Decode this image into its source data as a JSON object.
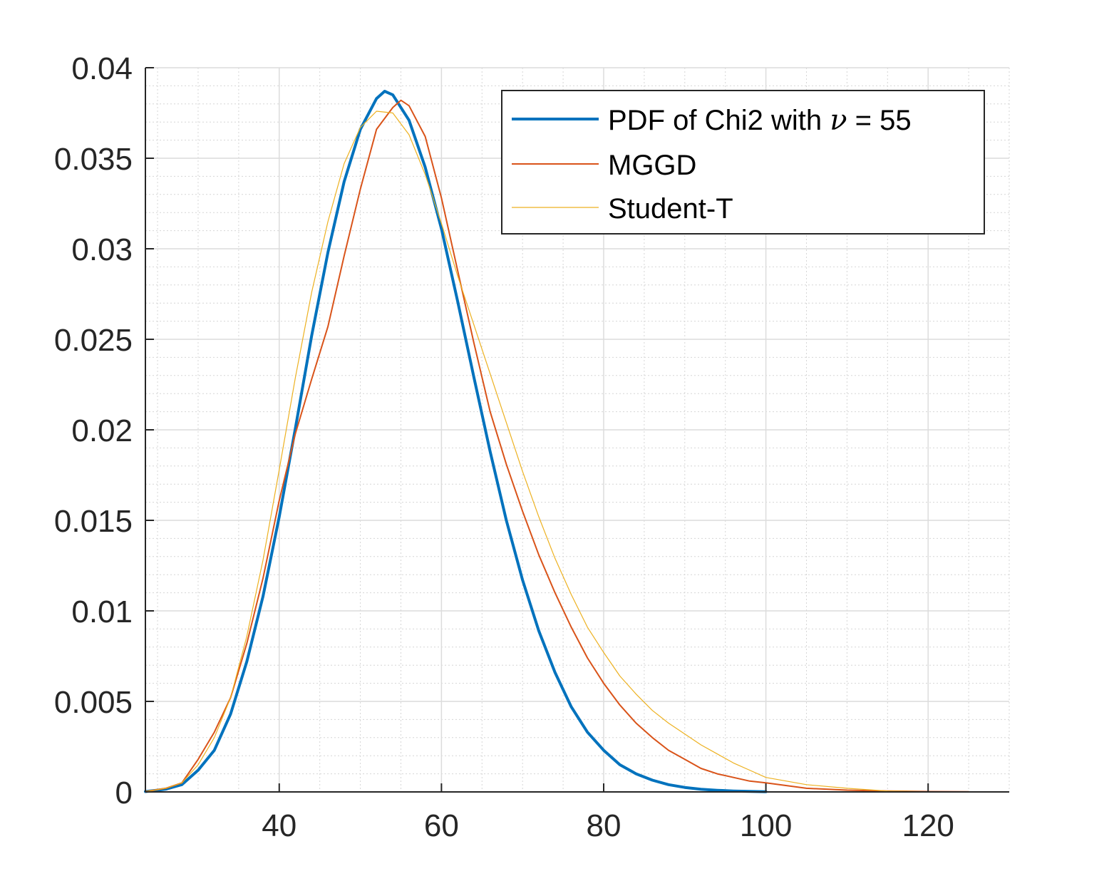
{
  "chart_data": {
    "type": "line",
    "title": "",
    "xlabel": "",
    "ylabel": "",
    "xlim": [
      23.5,
      130
    ],
    "ylim": [
      0,
      0.04
    ],
    "grid": true,
    "minor_grid": true,
    "legend_position": "top-right",
    "x_ticks": [
      40,
      60,
      80,
      100,
      120
    ],
    "x_tick_labels": [
      "40",
      "60",
      "80",
      "100",
      "120"
    ],
    "y_ticks": [
      0,
      0.005,
      0.01,
      0.015,
      0.02,
      0.025,
      0.03,
      0.035,
      0.04
    ],
    "y_tick_labels": [
      "0",
      "0.005",
      "0.01",
      "0.015",
      "0.02",
      "0.025",
      "0.03",
      "0.035",
      "0.04"
    ],
    "legend": {
      "chi2_prefix": "PDF of Chi2 with ",
      "nu_symbol": "ν",
      "chi2_suffix": " = 55"
    },
    "series": [
      {
        "name": "PDF of Chi2 with ν = 55",
        "color": "#0072BD",
        "style": "thick",
        "x": [
          23.5,
          26,
          28,
          30,
          32,
          34,
          36,
          38,
          40,
          42,
          44,
          46,
          48,
          50,
          52,
          53,
          54,
          56,
          58,
          60,
          62,
          64,
          66,
          68,
          70,
          72,
          74,
          76,
          78,
          80,
          82,
          84,
          86,
          88,
          90,
          92,
          94,
          96,
          98,
          100
        ],
        "y": [
          2e-05,
          0.00015,
          0.0004,
          0.0012,
          0.0023,
          0.0043,
          0.0072,
          0.0108,
          0.0152,
          0.0201,
          0.0252,
          0.0298,
          0.0337,
          0.0366,
          0.0383,
          0.0387,
          0.0385,
          0.0371,
          0.0345,
          0.0311,
          0.0271,
          0.0229,
          0.0188,
          0.015,
          0.0117,
          0.0089,
          0.0066,
          0.0047,
          0.0033,
          0.0023,
          0.0015,
          0.001,
          0.00065,
          0.0004,
          0.00025,
          0.00015,
          9e-05,
          5e-05,
          3e-05,
          1e-05
        ]
      },
      {
        "name": "MGGD",
        "color": "#D95319",
        "style": "thin",
        "x": [
          23.5,
          26,
          28,
          30,
          32,
          34,
          36,
          38,
          40,
          42,
          44,
          46,
          48,
          50,
          52,
          54,
          55,
          56,
          58,
          60,
          62,
          64,
          66,
          68,
          70,
          72,
          74,
          76,
          78,
          80,
          82,
          84,
          86,
          88,
          90,
          92,
          94,
          96,
          98,
          100,
          105,
          110,
          115,
          120,
          125
        ],
        "y": [
          2e-05,
          0.0002,
          0.0005,
          0.0018,
          0.0033,
          0.0052,
          0.0082,
          0.0118,
          0.0161,
          0.0198,
          0.0228,
          0.0257,
          0.0296,
          0.0333,
          0.0366,
          0.0378,
          0.0382,
          0.0379,
          0.0362,
          0.0328,
          0.0288,
          0.0248,
          0.021,
          0.0181,
          0.0155,
          0.0131,
          0.011,
          0.0091,
          0.0074,
          0.006,
          0.0048,
          0.0038,
          0.003,
          0.0023,
          0.0018,
          0.0013,
          0.001,
          0.0008,
          0.0006,
          0.0005,
          0.0002,
          0.0001,
          5e-05,
          2e-05,
          1e-05
        ]
      },
      {
        "name": "Student-T",
        "color": "#EDB120",
        "style": "thin",
        "x": [
          23.5,
          26,
          28,
          30,
          32,
          34,
          36,
          38,
          40,
          42,
          44,
          46,
          48,
          50,
          52,
          54,
          56,
          58,
          60,
          62,
          64,
          66,
          68,
          70,
          72,
          74,
          76,
          78,
          80,
          82,
          84,
          86,
          88,
          90,
          92,
          94,
          96,
          98,
          100,
          105,
          110,
          115,
          120
        ],
        "y": [
          2e-05,
          0.0002,
          0.0005,
          0.0015,
          0.003,
          0.0052,
          0.0086,
          0.0128,
          0.0178,
          0.0229,
          0.0276,
          0.0315,
          0.0347,
          0.0367,
          0.0376,
          0.0375,
          0.0363,
          0.0341,
          0.0314,
          0.0285,
          0.0258,
          0.0231,
          0.0204,
          0.0177,
          0.0152,
          0.0129,
          0.0109,
          0.0091,
          0.0077,
          0.0064,
          0.0054,
          0.0045,
          0.0038,
          0.0032,
          0.0026,
          0.0021,
          0.0016,
          0.0012,
          0.0008,
          0.0004,
          0.0002,
          5e-05,
          1e-05
        ]
      }
    ]
  }
}
